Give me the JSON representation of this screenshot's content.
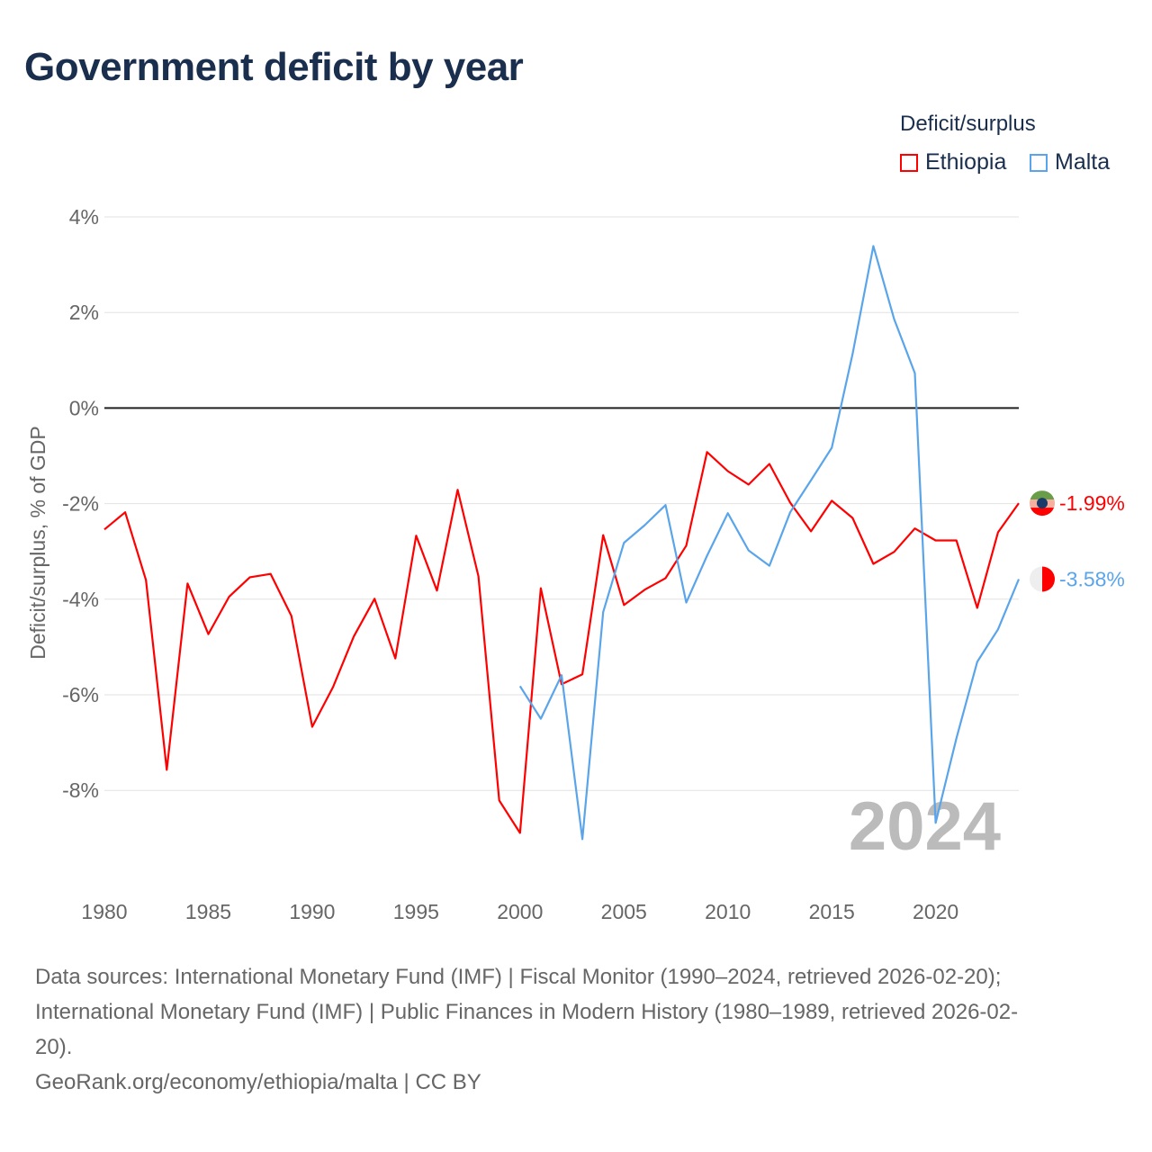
{
  "title": "Government deficit by year",
  "legend": {
    "title": "Deficit/surplus",
    "items": [
      {
        "name": "Ethiopia",
        "color": "#ff0000"
      },
      {
        "name": "Malta",
        "color": "#5aa5ea"
      }
    ]
  },
  "year_watermark": "2024",
  "sources": {
    "line1": "Data sources: International Monetary Fund (IMF) | Fiscal Monitor (1990–2024, retrieved 2026-02-20);",
    "line2": "International Monetary Fund (IMF) | Public Finances in Modern History (1980–1989, retrieved 2026-02-",
    "line3": "20).",
    "line4": "GeoRank.org/economy/ethiopia/malta | CC BY"
  },
  "chart_data": {
    "type": "line",
    "title": "Government deficit by year",
    "xlabel": "",
    "ylabel": "Deficit/surplus, % of GDP",
    "xlim": [
      1980,
      2024
    ],
    "ylim": [
      -10,
      4
    ],
    "xticks": [
      "1980",
      "1985",
      "1990",
      "1995",
      "2000",
      "2005",
      "2010",
      "2015",
      "2020"
    ],
    "yticks": [
      {
        "v": 4,
        "label": "4%"
      },
      {
        "v": 2,
        "label": "2%"
      },
      {
        "v": 0,
        "label": "0%"
      },
      {
        "v": -2,
        "label": "-2%"
      },
      {
        "v": -4,
        "label": "-4%"
      },
      {
        "v": -6,
        "label": "-6%"
      },
      {
        "v": -8,
        "label": "-8%"
      }
    ],
    "grid": true,
    "legend_position": "top-right",
    "series": [
      {
        "name": "Ethiopia",
        "color": "#ff0000",
        "end_label": "-1.99%",
        "start": 1980,
        "values": [
          -2.54,
          -2.18,
          -3.6,
          -7.57,
          -3.67,
          -4.73,
          -3.95,
          -3.54,
          -3.47,
          -4.35,
          -6.67,
          -5.84,
          -4.78,
          -3.99,
          -5.24,
          -2.67,
          -3.82,
          -1.71,
          -3.52,
          -8.21,
          -8.89,
          -3.77,
          -5.78,
          -5.57,
          -2.66,
          -4.12,
          -3.8,
          -3.56,
          -2.88,
          -0.92,
          -1.32,
          -1.6,
          -1.17,
          -1.98,
          -2.58,
          -1.94,
          -2.3,
          -3.26,
          -3.01,
          -2.52,
          -2.77,
          -2.77,
          -4.18,
          -2.6,
          -1.99
        ]
      },
      {
        "name": "Malta",
        "color": "#5aa5ea",
        "end_label": "-3.58%",
        "start": 2000,
        "values": [
          -5.82,
          -6.5,
          -5.59,
          -9.02,
          -4.27,
          -2.82,
          -2.45,
          -2.03,
          -4.07,
          -3.09,
          -2.2,
          -2.98,
          -3.3,
          -2.18,
          -1.51,
          -0.83,
          1.13,
          3.39,
          1.86,
          0.73,
          -8.68,
          -6.91,
          -5.31,
          -4.63,
          -3.58
        ]
      }
    ]
  }
}
